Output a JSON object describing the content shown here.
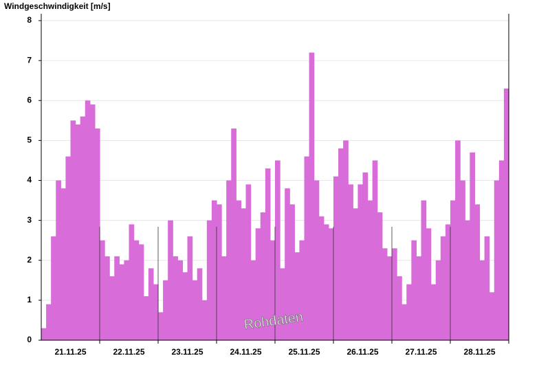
{
  "chart_data": {
    "type": "area",
    "title": "Windgeschwindigkeit [m/s]",
    "categories": [
      "21.11.25",
      "22.11.25",
      "23.11.25",
      "24.11.25",
      "25.11.25",
      "26.11.25",
      "27.11.25",
      "28.11.25"
    ],
    "series": [
      {
        "name": "Rohdaten",
        "color": "#d86cd8",
        "values": [
          [
            0.3,
            0.9,
            2.6,
            4.0,
            3.8,
            4.6,
            5.5,
            5.4,
            5.6,
            6.0,
            5.9,
            5.3
          ],
          [
            2.5,
            2.1,
            1.6,
            2.1,
            1.9,
            2.0,
            2.9,
            2.5,
            2.4,
            1.1,
            1.8,
            1.4
          ],
          [
            0.7,
            1.5,
            3.0,
            2.1,
            2.0,
            1.7,
            2.6,
            1.5,
            1.8,
            1.0,
            3.0,
            3.5
          ],
          [
            3.4,
            2.1,
            4.0,
            5.3,
            3.5,
            3.3,
            3.9,
            2.0,
            2.8,
            3.2,
            4.3,
            2.5
          ],
          [
            4.5,
            1.8,
            3.8,
            3.4,
            2.2,
            2.5,
            4.6,
            7.2,
            4.0,
            3.1,
            2.9,
            2.8
          ],
          [
            4.1,
            4.8,
            5.0,
            3.9,
            3.3,
            3.9,
            4.2,
            3.5,
            4.5,
            3.2,
            2.3,
            2.1
          ],
          [
            2.3,
            1.6,
            0.9,
            1.4,
            2.5,
            2.1,
            3.5,
            2.8,
            1.4,
            2.0,
            2.6,
            2.9
          ],
          [
            3.5,
            5.0,
            4.0,
            3.0,
            4.7,
            3.4,
            2.0,
            2.6,
            1.2,
            4.0,
            4.5,
            6.3
          ]
        ]
      }
    ],
    "ylim": [
      0,
      8
    ],
    "yticks": [
      0,
      1,
      2,
      3,
      4,
      5,
      6,
      7,
      8
    ],
    "grid": true
  }
}
